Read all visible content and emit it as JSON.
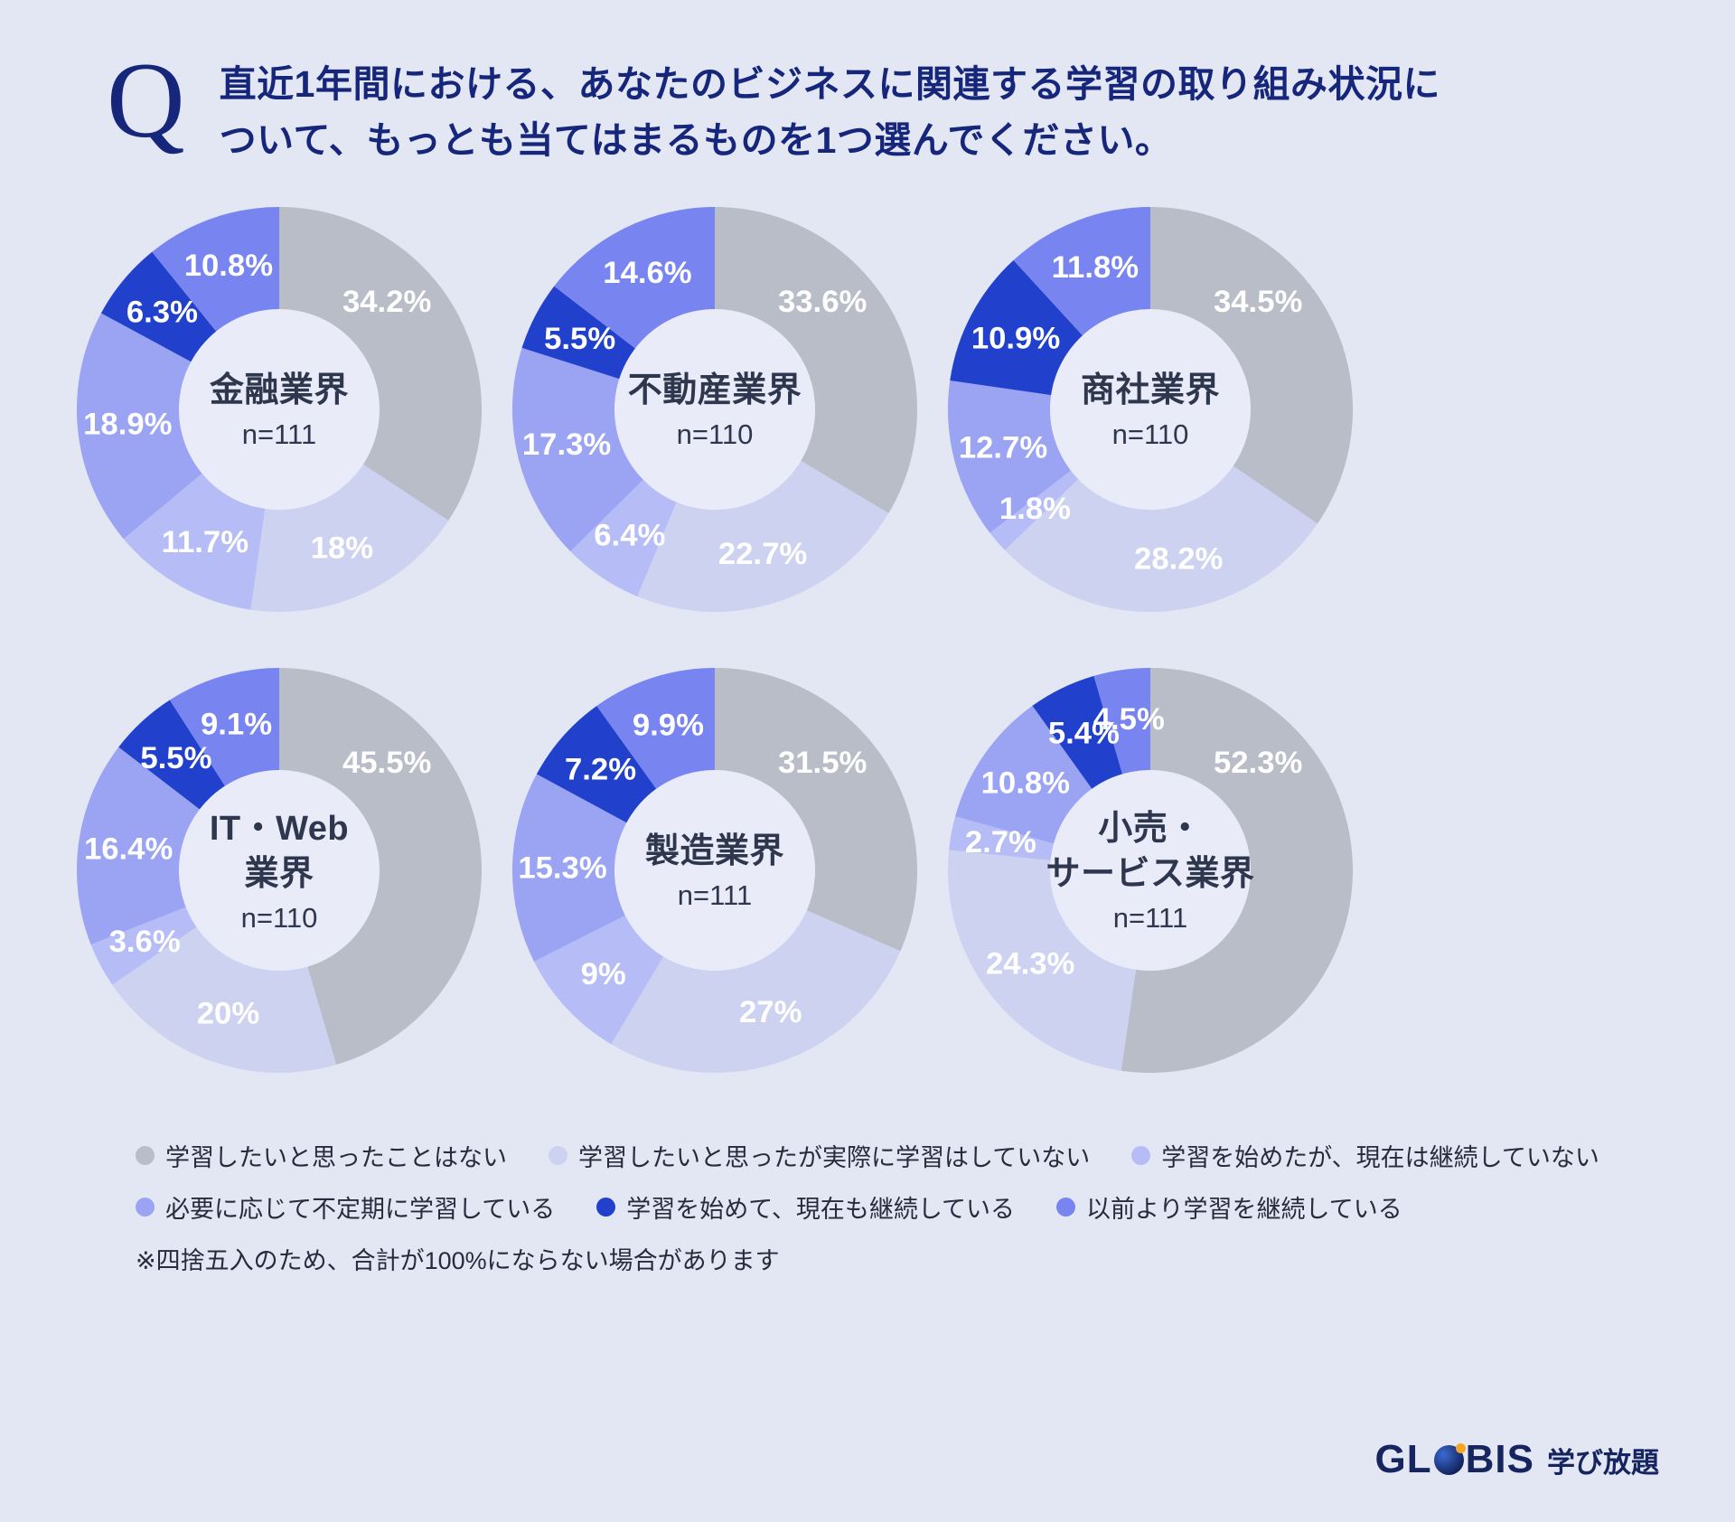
{
  "question": {
    "q_mark": "Q",
    "line1": "直近1年間における、あなたのビジネスに関連する学習の取り組み状況に",
    "line2": "ついて、もっとも当てはまるものを1つ選んでください。"
  },
  "footnote": "※四捨五入のため、合計が100%にならない場合があります",
  "logo": {
    "part1": "GL",
    "part2": "BIS",
    "suffix": "学び放題"
  },
  "colors": {
    "background": "#e3e7f4",
    "hole": "#e9ecf8",
    "title": "#16277b",
    "center_text": "#2f374f",
    "label_text": "#ffffff"
  },
  "chart_data": {
    "type": "pie",
    "variant": "donut",
    "legend_position": "bottom",
    "segment_categories": [
      "学習したいと思ったことはない",
      "学習したいと思ったが実際に学習はしていない",
      "学習を始めたが、現在は継続していない",
      "必要に応じて不定期に学習している",
      "学習を始めて、現在も継続している",
      "以前より学習を継続している"
    ],
    "segment_colors": [
      "#b9bdc7",
      "#cdd2f1",
      "#b6bdf6",
      "#9aa4f3",
      "#2141cd",
      "#7884f0"
    ],
    "charts": [
      {
        "title_lines": [
          "金融業界"
        ],
        "n_label": "n=111",
        "values": [
          34.2,
          18,
          11.7,
          18.9,
          6.3,
          10.8
        ],
        "display_labels": [
          "34.2%",
          "18%",
          "11.7%",
          "18.9%",
          "6.3%",
          "10.8%"
        ]
      },
      {
        "title_lines": [
          "不動産業界"
        ],
        "n_label": "n=110",
        "values": [
          33.6,
          22.7,
          6.4,
          17.3,
          5.5,
          14.6
        ],
        "display_labels": [
          "33.6%",
          "22.7%",
          "6.4%",
          "17.3%",
          "5.5%",
          "14.6%"
        ]
      },
      {
        "title_lines": [
          "商社業界"
        ],
        "n_label": "n=110",
        "values": [
          34.5,
          28.2,
          1.8,
          12.7,
          10.9,
          11.8
        ],
        "display_labels": [
          "34.5%",
          "28.2%",
          "1.8%",
          "12.7%",
          "10.9%",
          "11.8%"
        ]
      },
      {
        "title_lines": [
          "IT・Web",
          "業界"
        ],
        "n_label": "n=110",
        "values": [
          45.5,
          20,
          3.6,
          16.4,
          5.5,
          9.1
        ],
        "display_labels": [
          "45.5%",
          "20%",
          "3.6%",
          "16.4%",
          "5.5%",
          "9.1%"
        ]
      },
      {
        "title_lines": [
          "製造業界"
        ],
        "n_label": "n=111",
        "values": [
          31.5,
          27,
          9,
          15.3,
          7.2,
          9.9
        ],
        "display_labels": [
          "31.5%",
          "27%",
          "9%",
          "15.3%",
          "7.2%",
          "9.9%"
        ]
      },
      {
        "title_lines": [
          "小売・",
          "サービス業界"
        ],
        "n_label": "n=111",
        "values": [
          52.3,
          24.3,
          2.7,
          10.8,
          5.4,
          4.5
        ],
        "display_labels": [
          "52.3%",
          "24.3%",
          "2.7%",
          "10.8%",
          "5.4%",
          "4.5%"
        ]
      }
    ]
  }
}
